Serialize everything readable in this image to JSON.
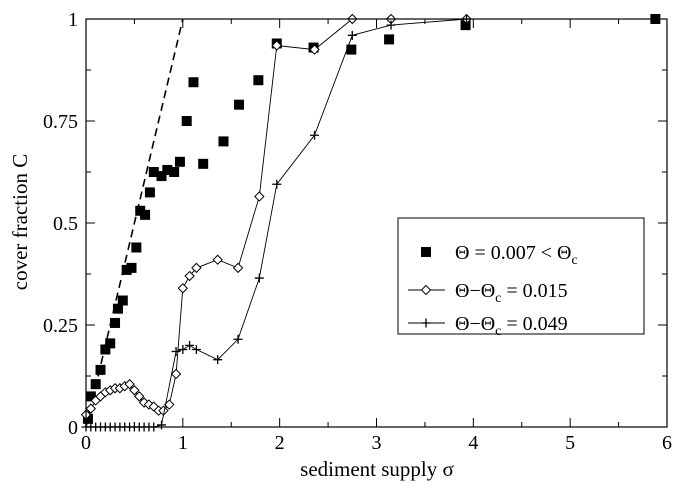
{
  "chart_data": {
    "type": "scatter",
    "xlabel": "sediment supply σ",
    "ylabel": "cover fraction C",
    "xlim": [
      0,
      6
    ],
    "ylim": [
      0,
      1
    ],
    "x_ticks": [
      "0",
      "1",
      "2",
      "3",
      "4",
      "5",
      "6"
    ],
    "y_ticks": [
      "0",
      "0.25",
      "0.5",
      "0.75",
      "1"
    ],
    "grid": false,
    "legend_position": "center-right",
    "series": [
      {
        "name": "Θ = 0.007 < Θc",
        "legend": {
          "pre": "Θ = 0.007 < Θ",
          "sub": "c",
          "post": ""
        },
        "marker": "filled-square",
        "line": false,
        "points": [
          [
            0.02,
            0.02
          ],
          [
            0.05,
            0.075
          ],
          [
            0.1,
            0.105
          ],
          [
            0.15,
            0.14
          ],
          [
            0.2,
            0.19
          ],
          [
            0.25,
            0.205
          ],
          [
            0.3,
            0.255
          ],
          [
            0.33,
            0.29
          ],
          [
            0.38,
            0.31
          ],
          [
            0.42,
            0.385
          ],
          [
            0.47,
            0.39
          ],
          [
            0.52,
            0.44
          ],
          [
            0.56,
            0.53
          ],
          [
            0.61,
            0.52
          ],
          [
            0.66,
            0.575
          ],
          [
            0.7,
            0.625
          ],
          [
            0.78,
            0.615
          ],
          [
            0.84,
            0.63
          ],
          [
            0.91,
            0.625
          ],
          [
            0.97,
            0.65
          ],
          [
            1.04,
            0.75
          ],
          [
            1.11,
            0.845
          ],
          [
            1.21,
            0.645
          ],
          [
            1.42,
            0.7
          ],
          [
            1.58,
            0.79
          ],
          [
            1.78,
            0.85
          ],
          [
            1.97,
            0.94
          ],
          [
            2.35,
            0.93
          ],
          [
            2.74,
            0.925
          ],
          [
            3.13,
            0.95
          ],
          [
            3.92,
            0.985
          ],
          [
            5.88,
            1.0
          ]
        ]
      },
      {
        "name": "Θ−Θc = 0.015",
        "legend": {
          "pre": "Θ−Θ",
          "sub": "c",
          "post": " = 0.015"
        },
        "marker": "open-diamond",
        "line": true,
        "points": [
          [
            0.0,
            0.03
          ],
          [
            0.05,
            0.045
          ],
          [
            0.1,
            0.065
          ],
          [
            0.15,
            0.075
          ],
          [
            0.2,
            0.085
          ],
          [
            0.25,
            0.09
          ],
          [
            0.3,
            0.095
          ],
          [
            0.35,
            0.095
          ],
          [
            0.4,
            0.1
          ],
          [
            0.45,
            0.105
          ],
          [
            0.5,
            0.09
          ],
          [
            0.55,
            0.075
          ],
          [
            0.6,
            0.06
          ],
          [
            0.65,
            0.055
          ],
          [
            0.7,
            0.05
          ],
          [
            0.75,
            0.04
          ],
          [
            0.8,
            0.04
          ],
          [
            0.86,
            0.055
          ],
          [
            0.93,
            0.13
          ],
          [
            1.0,
            0.34
          ],
          [
            1.07,
            0.37
          ],
          [
            1.14,
            0.39
          ],
          [
            1.36,
            0.41
          ],
          [
            1.57,
            0.39
          ],
          [
            1.79,
            0.565
          ],
          [
            1.97,
            0.935
          ],
          [
            2.36,
            0.925
          ],
          [
            2.75,
            1.0
          ],
          [
            3.15,
            1.0
          ],
          [
            3.93,
            1.0
          ]
        ]
      },
      {
        "name": "Θ−Θc = 0.049",
        "legend": {
          "pre": "Θ−Θ",
          "sub": "c",
          "post": " = 0.049"
        },
        "marker": "plus",
        "line": true,
        "points": [
          [
            0.0,
            0.0
          ],
          [
            0.05,
            0.0
          ],
          [
            0.1,
            0.0
          ],
          [
            0.15,
            0.0
          ],
          [
            0.2,
            0.0
          ],
          [
            0.25,
            0.0
          ],
          [
            0.3,
            0.0
          ],
          [
            0.35,
            0.0
          ],
          [
            0.4,
            0.0
          ],
          [
            0.45,
            0.0
          ],
          [
            0.5,
            0.0
          ],
          [
            0.55,
            0.0
          ],
          [
            0.6,
            0.0
          ],
          [
            0.65,
            0.0
          ],
          [
            0.7,
            0.0
          ],
          [
            0.78,
            0.005
          ],
          [
            0.93,
            0.185
          ],
          [
            1.0,
            0.19
          ],
          [
            1.07,
            0.2
          ],
          [
            1.14,
            0.19
          ],
          [
            1.36,
            0.165
          ],
          [
            1.57,
            0.215
          ],
          [
            1.79,
            0.365
          ],
          [
            1.97,
            0.595
          ],
          [
            2.36,
            0.715
          ],
          [
            2.75,
            0.96
          ],
          [
            3.15,
            0.985
          ],
          [
            3.93,
            1.0
          ]
        ]
      }
    ],
    "fit_line": {
      "style": "dashed",
      "points": [
        [
          0.0,
          0.0
        ],
        [
          1.0,
          1.0
        ]
      ]
    }
  }
}
